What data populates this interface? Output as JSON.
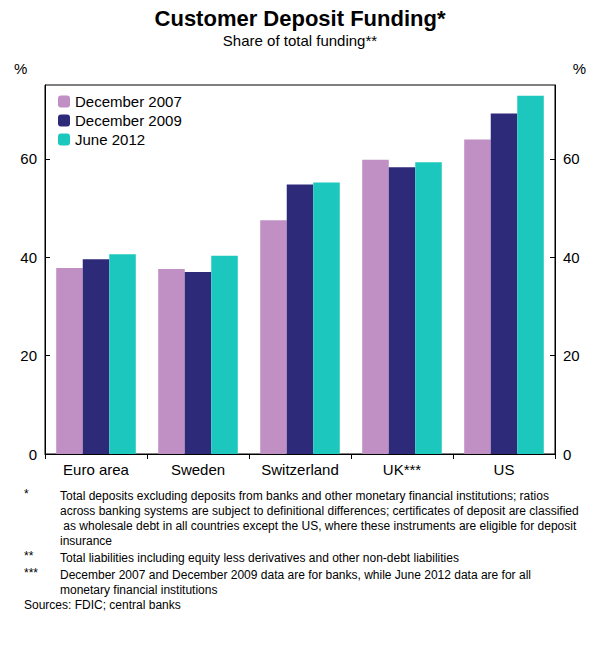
{
  "chart_data": {
    "type": "bar",
    "title": "Customer Deposit Funding*",
    "subtitle": "Share of total funding**",
    "ylabel": "%",
    "categories": [
      "Euro area",
      "Sweden",
      "Switzerland",
      "UK***",
      "US"
    ],
    "series": [
      {
        "name": "December 2007",
        "color": "#c08fc4",
        "values": [
          37.8,
          37.6,
          47.5,
          59.8,
          63.9
        ]
      },
      {
        "name": "December 2009",
        "color": "#2e2a7a",
        "values": [
          39.6,
          37.0,
          54.8,
          58.3,
          69.2
        ]
      },
      {
        "name": "June 2012",
        "color": "#1cc8bd",
        "values": [
          40.6,
          40.3,
          55.2,
          59.3,
          72.8
        ]
      }
    ],
    "ylim": [
      0,
      75
    ],
    "yticks": [
      0,
      20,
      40,
      60
    ],
    "grid": false,
    "legend": "top-left",
    "notes": [
      {
        "marker": "*",
        "text": "Total deposits excluding deposits from banks and other monetary financial institutions; ratios across banking systems are subject to definitional differences; certificates of deposit are classified as wholesale debt in all countries except the US, where these instruments are eligible for deposit insurance"
      },
      {
        "marker": "**",
        "text": "Total liabilities including equity less derivatives and other non-debt liabilities"
      },
      {
        "marker": "***",
        "text": "December 2007 and December 2009 data are for banks, while June 2012 data are for all monetary financial institutions"
      }
    ],
    "sources": "Sources: FDIC; central banks"
  }
}
